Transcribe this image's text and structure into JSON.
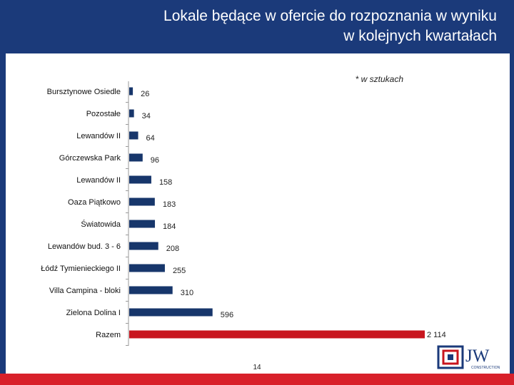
{
  "header": {
    "title_line1": "Lokale będące w ofercie do rozpoznania w wyniku",
    "title_line2": "w kolejnych kwartałach"
  },
  "unit_note": "* w sztukach",
  "page_number": "14",
  "logo": {
    "letters": "JW",
    "subtitle": "CONSTRUCTION"
  },
  "colors": {
    "header": "#1b3a7a",
    "bar": "#17366b",
    "total_bar": "#c8151e",
    "footer": "#d8202a"
  },
  "chart_data": {
    "type": "bar",
    "orientation": "horizontal",
    "categories": [
      "Bursztynowe Osiedle",
      "Pozostałe",
      "Lewandów II",
      "Górczewska Park",
      "Lewandów II",
      "Oaza Piątkowo",
      "Światowida",
      "Lewandów bud. 3 - 6",
      "Łódź Tymienieckiego II",
      "Villa Campina - bloki",
      "Zielona Dolina I",
      "Razem"
    ],
    "values": [
      26,
      34,
      64,
      96,
      158,
      183,
      184,
      208,
      255,
      310,
      596,
      2114
    ],
    "value_labels": [
      "26",
      "34",
      "64",
      "96",
      "158",
      "183",
      "184",
      "208",
      "255",
      "310",
      "596",
      "2 114"
    ],
    "highlight_index": 11,
    "xlim": [
      0,
      2114
    ],
    "grid": false,
    "legend": "none"
  }
}
